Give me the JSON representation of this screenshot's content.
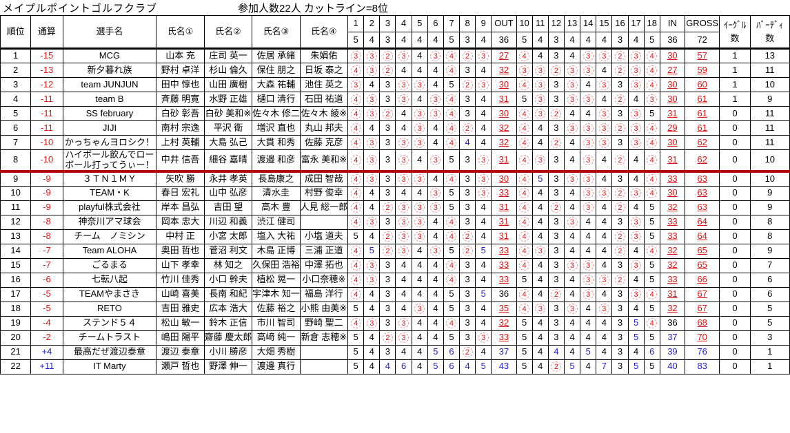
{
  "title": "メイプルポイントゴルフクラブ",
  "subtitle": "参加人数22人 カットライン=8位",
  "header": {
    "rank": "順位",
    "total": "通算",
    "team": "選手名",
    "names": [
      "氏名①",
      "氏名②",
      "氏名③",
      "氏名④"
    ],
    "holes_out": [
      "1",
      "2",
      "3",
      "4",
      "5",
      "6",
      "7",
      "8",
      "9"
    ],
    "holes_in": [
      "10",
      "11",
      "12",
      "13",
      "14",
      "15",
      "16",
      "17",
      "18"
    ],
    "out_label": "OUT",
    "in_label": "IN",
    "gross_label": "GROSS",
    "eagle_label": "ｲｰｸﾞﾙ",
    "birdie_label": "ﾊﾞｰﾃﾞｨ",
    "count_label": "数",
    "par_out": [
      "5",
      "4",
      "3",
      "4",
      "4",
      "4",
      "5",
      "3",
      "4"
    ],
    "par_in": [
      "5",
      "4",
      "3",
      "4",
      "4",
      "4",
      "3",
      "4",
      "5"
    ],
    "par_out_total": "36",
    "par_in_total": "36",
    "par_gross": "72"
  },
  "colors": {
    "under_par": "#e01515",
    "over_par": "#1f1fd0",
    "cut_line": "#b30505"
  },
  "cut_after_rank": "8",
  "legend": {
    "circle_means": "under-par score",
    "blue_means": "over-par score"
  },
  "rows": [
    {
      "rank": "1",
      "total": "-15",
      "team": "MCG",
      "names": [
        "山本 充",
        "庄司 英一",
        "佐居 承緒",
        "朱娟佑"
      ],
      "out": [
        "3c",
        "3c",
        "2c",
        "3c",
        "4",
        "3c",
        "4c",
        "2c",
        "3c"
      ],
      "out_total": "27u",
      "in": [
        "4c",
        "4",
        "3",
        "4",
        "3c",
        "3c",
        "2c",
        "3c",
        "4c"
      ],
      "in_total": "30u",
      "gross": "57u",
      "eagles": "1",
      "birdies": "13"
    },
    {
      "rank": "2",
      "total": "-13",
      "team": "新夕暮れ族",
      "names": [
        "野村 卓洋",
        "杉山 倫久",
        "保住 朋之",
        "日坂 泰之"
      ],
      "out": [
        "4c",
        "3c",
        "2c",
        "4",
        "4",
        "4",
        "4c",
        "3",
        "4"
      ],
      "out_total": "32u",
      "in": [
        "3c",
        "3c",
        "2c",
        "3c",
        "3c",
        "4",
        "2c",
        "3c",
        "4c"
      ],
      "in_total": "27u",
      "gross": "59u",
      "eagles": "1",
      "birdies": "11"
    },
    {
      "rank": "3",
      "total": "-12",
      "team": "team JUNJUN",
      "names": [
        "田中 惇也",
        "山田 廣樹",
        "大森 祐輔",
        "池住 英之"
      ],
      "out": [
        "3c",
        "4",
        "3",
        "3c",
        "3c",
        "4",
        "5",
        "2c",
        "3c"
      ],
      "out_total": "30u",
      "in": [
        "4c",
        "3c",
        "3",
        "3c",
        "4",
        "3c",
        "3",
        "3c",
        "4c"
      ],
      "in_total": "30u",
      "gross": "60u",
      "eagles": "1",
      "birdies": "10"
    },
    {
      "rank": "4",
      "total": "-11",
      "team": "team B",
      "names": [
        "斉藤 明寛",
        "水野 正雄",
        "樋口 清行",
        "石田 祐道"
      ],
      "out": [
        "4c",
        "3c",
        "3",
        "3c",
        "4",
        "3c",
        "4c",
        "3",
        "4"
      ],
      "out_total": "31u",
      "in": [
        "5",
        "3c",
        "3",
        "3c",
        "3c",
        "4",
        "2c",
        "4",
        "3c"
      ],
      "in_total": "30u",
      "gross": "61u",
      "eagles": "1",
      "birdies": "9"
    },
    {
      "rank": "5",
      "total": "-11",
      "team": "SS february",
      "names": [
        "白砂 彰吾",
        "白砂 美和※",
        "佐々木 修二",
        "佐々木 綾※"
      ],
      "out": [
        "4c",
        "3c",
        "2c",
        "4",
        "3c",
        "3c",
        "4c",
        "3",
        "4"
      ],
      "out_total": "30u",
      "in": [
        "4c",
        "3c",
        "2c",
        "4",
        "4",
        "3c",
        "3",
        "3c",
        "5"
      ],
      "in_total": "31u",
      "gross": "61u",
      "eagles": "0",
      "birdies": "11"
    },
    {
      "rank": "6",
      "total": "-11",
      "team": "JIJI",
      "names": [
        "南村 宗逸",
        "平沢 衛",
        "増沢 直也",
        "丸山 邦夫"
      ],
      "out": [
        "4c",
        "4",
        "3",
        "4",
        "3c",
        "4",
        "4c",
        "2c",
        "4"
      ],
      "out_total": "32u",
      "in": [
        "4c",
        "4",
        "3",
        "3c",
        "3c",
        "3c",
        "2c",
        "3c",
        "4c"
      ],
      "in_total": "29u",
      "gross": "61u",
      "eagles": "0",
      "birdies": "11"
    },
    {
      "rank": "7",
      "total": "-10",
      "team": "かっちゃんヨロシク！",
      "names": [
        "上村 英輔",
        "大島 弘己",
        "大貫 和秀",
        "佐藤 克彦"
      ],
      "out": [
        "4c",
        "3c",
        "3",
        "3c",
        "3c",
        "4",
        "4c",
        "4b",
        "4"
      ],
      "out_total": "32u",
      "in": [
        "4c",
        "4",
        "2c",
        "4",
        "3c",
        "3c",
        "3",
        "3c",
        "4c"
      ],
      "in_total": "30u",
      "gross": "62u",
      "eagles": "0",
      "birdies": "11"
    },
    {
      "rank": "8",
      "total": "-10",
      "team": "ハイボール飲んでローボール打ってうぃー！",
      "names": [
        "中井 信吾",
        "細谷 嘉晴",
        "渡邉 和彦",
        "富永 美和※"
      ],
      "out": [
        "4c",
        "3c",
        "3",
        "3c",
        "4",
        "3c",
        "5",
        "3",
        "3c"
      ],
      "out_total": "31u",
      "in": [
        "4c",
        "3c",
        "3",
        "4",
        "3c",
        "4",
        "2c",
        "4",
        "4c"
      ],
      "in_total": "31u",
      "gross": "62u",
      "eagles": "0",
      "birdies": "10"
    },
    {
      "rank": "9",
      "total": "-9",
      "team": "３ＴＮ１ＭＹ",
      "names": [
        "矢吹 勝",
        "永井 孝英",
        "長島康之",
        "成田 智哉"
      ],
      "out": [
        "4c",
        "3c",
        "3",
        "3c",
        "3c",
        "4",
        "4c",
        "3",
        "3c"
      ],
      "out_total": "30u",
      "in": [
        "4c",
        "5b",
        "3",
        "3c",
        "3c",
        "4",
        "3",
        "4",
        "4c"
      ],
      "in_total": "33u",
      "gross": "63u",
      "eagles": "0",
      "birdies": "10"
    },
    {
      "rank": "10",
      "total": "-9",
      "team": "TEAM・K",
      "names": [
        "春日 宏礼",
        "山中 弘彦",
        "清水圭",
        "村野 俊幸"
      ],
      "out": [
        "4c",
        "4",
        "3",
        "4",
        "4",
        "3c",
        "5",
        "3",
        "3c"
      ],
      "out_total": "33u",
      "in": [
        "4c",
        "4",
        "3",
        "4",
        "3c",
        "3c",
        "2c",
        "3c",
        "4c"
      ],
      "in_total": "30u",
      "gross": "63u",
      "eagles": "0",
      "birdies": "9"
    },
    {
      "rank": "11",
      "total": "-9",
      "team": "playful株式会社",
      "names": [
        "岸本 昌弘",
        "吉田 望",
        "高木 豊",
        "人見 総一郎"
      ],
      "out": [
        "4c",
        "4",
        "2c",
        "3c",
        "3c",
        "3c",
        "5",
        "3",
        "4"
      ],
      "out_total": "31u",
      "in": [
        "4c",
        "4",
        "2c",
        "4",
        "3c",
        "4",
        "2c",
        "4",
        "5"
      ],
      "in_total": "32u",
      "gross": "63u",
      "eagles": "0",
      "birdies": "9"
    },
    {
      "rank": "12",
      "total": "-8",
      "team": "神奈川アマ球会",
      "names": [
        "岡本 忠大",
        "川辺 和義",
        "渋江 健司",
        ""
      ],
      "out": [
        "4c",
        "3c",
        "3",
        "3c",
        "3c",
        "4",
        "4c",
        "3",
        "4"
      ],
      "out_total": "31u",
      "in": [
        "4c",
        "4",
        "3",
        "3c",
        "4",
        "4",
        "3",
        "3c",
        "5"
      ],
      "in_total": "33u",
      "gross": "64u",
      "eagles": "0",
      "birdies": "8"
    },
    {
      "rank": "13",
      "total": "-8",
      "team": "チーム　ノミシン",
      "names": [
        "中村 正",
        "小宮 太郎",
        "塩入 大祐",
        "小塩 道夫"
      ],
      "out": [
        "5",
        "4",
        "2c",
        "3c",
        "3c",
        "4",
        "4c",
        "2c",
        "4"
      ],
      "out_total": "31u",
      "in": [
        "4c",
        "4",
        "3",
        "4",
        "4",
        "4",
        "2c",
        "3c",
        "5"
      ],
      "in_total": "33u",
      "gross": "64u",
      "eagles": "0",
      "birdies": "8"
    },
    {
      "rank": "14",
      "total": "-7",
      "team": "Team ALOHA",
      "names": [
        "奥田 哲也",
        "菅沼 利文",
        "木島 正博",
        "三浦 正道"
      ],
      "out": [
        "4c",
        "5b",
        "2c",
        "3c",
        "4",
        "3c",
        "5",
        "2c",
        "5b"
      ],
      "out_total": "33u",
      "in": [
        "4c",
        "3c",
        "3",
        "4",
        "4",
        "4",
        "2c",
        "4",
        "4c"
      ],
      "in_total": "32u",
      "gross": "65u",
      "eagles": "0",
      "birdies": "9"
    },
    {
      "rank": "15",
      "total": "-7",
      "team": "ごるまる",
      "names": [
        "山下 孝幸",
        "林 知之",
        "久保田 浩裕",
        "中澤 拓也"
      ],
      "out": [
        "4c",
        "3c",
        "3",
        "4",
        "4",
        "4",
        "4c",
        "3",
        "4"
      ],
      "out_total": "33u",
      "in": [
        "4c",
        "4",
        "3",
        "3c",
        "3c",
        "4",
        "3",
        "3c",
        "5"
      ],
      "in_total": "32u",
      "gross": "65u",
      "eagles": "0",
      "birdies": "7"
    },
    {
      "rank": "16",
      "total": "-6",
      "team": "七転八起",
      "names": [
        "竹川 佳秀",
        "小口 幹夫",
        "植松 晃一",
        "小口奈穂※"
      ],
      "out": [
        "4c",
        "3c",
        "3",
        "4",
        "4",
        "4",
        "4c",
        "3",
        "4"
      ],
      "out_total": "33u",
      "in": [
        "5",
        "4",
        "3",
        "4",
        "3c",
        "3c",
        "2c",
        "4",
        "5"
      ],
      "in_total": "33u",
      "gross": "66u",
      "eagles": "0",
      "birdies": "6"
    },
    {
      "rank": "17",
      "total": "-5",
      "team": "TEAMやまさき",
      "names": [
        "山崎 喜美",
        "長南 和紀",
        "宇津木 知一",
        "福島 洋行"
      ],
      "out": [
        "4c",
        "4",
        "3",
        "4",
        "4",
        "4",
        "5",
        "3",
        "5b"
      ],
      "out_total": "36",
      "in": [
        "4c",
        "4",
        "2c",
        "4",
        "3c",
        "4",
        "3",
        "3c",
        "4c"
      ],
      "in_total": "31u",
      "gross": "67u",
      "eagles": "0",
      "birdies": "6"
    },
    {
      "rank": "18",
      "total": "-5",
      "team": "RETO",
      "names": [
        "吉田 雅史",
        "広本 浩大",
        "佐藤 裕之",
        "小熊 由美※"
      ],
      "out": [
        "5",
        "4",
        "3",
        "4",
        "3c",
        "4",
        "5",
        "3",
        "4"
      ],
      "out_total": "35u",
      "in": [
        "4c",
        "3c",
        "3",
        "3c",
        "4",
        "3c",
        "3",
        "4",
        "5"
      ],
      "in_total": "32u",
      "gross": "67u",
      "eagles": "0",
      "birdies": "5"
    },
    {
      "rank": "19",
      "total": "-4",
      "team": "ステンド５４",
      "names": [
        "松山 敏一",
        "鈴木 正信",
        "市川 智司",
        "野崎 聖二"
      ],
      "out": [
        "4c",
        "3c",
        "3",
        "3c",
        "4",
        "4",
        "4c",
        "3",
        "4"
      ],
      "out_total": "32u",
      "in": [
        "5",
        "4",
        "3",
        "4",
        "4",
        "4",
        "3",
        "5b",
        "4c"
      ],
      "in_total": "36",
      "gross": "68u",
      "eagles": "0",
      "birdies": "5"
    },
    {
      "rank": "20",
      "total": "-2",
      "team": "チームトラスト",
      "names": [
        "嶋田 陽平",
        "齋藤 慶太郎",
        "高﨑 純一",
        "新倉 志穂※"
      ],
      "out": [
        "5",
        "4",
        "2c",
        "3c",
        "4",
        "4",
        "5",
        "3",
        "3c"
      ],
      "out_total": "33u",
      "in": [
        "5",
        "4",
        "3",
        "4",
        "4",
        "4",
        "3",
        "5b",
        "5"
      ],
      "in_total": "37b",
      "gross": "70u",
      "eagles": "0",
      "birdies": "3"
    },
    {
      "rank": "21",
      "total": "+4",
      "team": "最高だぜ渡辺泰章",
      "names": [
        "渡辺 泰章",
        "小川 勝彦",
        "大畑 秀樹",
        ""
      ],
      "out": [
        "5",
        "4",
        "3",
        "4",
        "4",
        "5b",
        "6b",
        "2c",
        "4"
      ],
      "out_total": "37b",
      "in": [
        "5",
        "4",
        "4b",
        "4",
        "5b",
        "4",
        "3",
        "4",
        "6b"
      ],
      "in_total": "39b",
      "gross": "76b",
      "eagles": "0",
      "birdies": "1"
    },
    {
      "rank": "22",
      "total": "+11",
      "team": "IT Marty",
      "names": [
        "瀬戸 哲也",
        "野澤 伸一",
        "渡邊 真行",
        ""
      ],
      "out": [
        "5",
        "4",
        "4b",
        "6b",
        "4",
        "5b",
        "6b",
        "4b",
        "5b"
      ],
      "out_total": "43b",
      "in": [
        "5",
        "4",
        "2c",
        "5b",
        "4",
        "7b",
        "3",
        "5b",
        "5"
      ],
      "in_total": "40b",
      "gross": "83b",
      "eagles": "0",
      "birdies": "1"
    }
  ]
}
